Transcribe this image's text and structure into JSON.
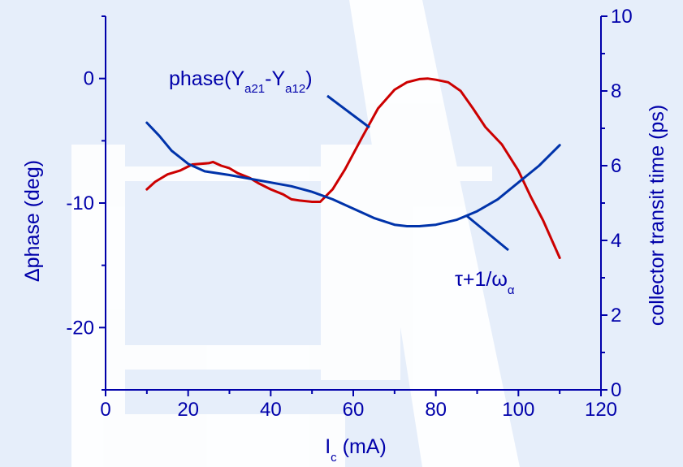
{
  "colors": {
    "background": "#e6eefa",
    "watermark": "#ffffff",
    "axis": "#0000aa",
    "series_red": "#cc0000",
    "series_blue": "#0033aa"
  },
  "chart_data": {
    "type": "line",
    "xlabel": {
      "main": "I",
      "sub": "c",
      "rest": " (mA)"
    },
    "ylabel_left": "Δphase (deg)",
    "ylabel_right": "collector transit time (ps)",
    "xlim": [
      0,
      120
    ],
    "ylim_left": [
      -25,
      5
    ],
    "ylim_right": [
      0,
      10
    ],
    "xticks": [
      "0",
      "20",
      "40",
      "60",
      "80",
      "100",
      "120"
    ],
    "yticks_left": [
      "0",
      "-10",
      "-20"
    ],
    "yticks_right": [
      "0",
      "2",
      "4",
      "6",
      "8",
      "10"
    ],
    "series": [
      {
        "axis": "left",
        "color": "#cc0000",
        "x": [
          10,
          12,
          15,
          18,
          21,
          25,
          26,
          28,
          30,
          32,
          35,
          37,
          40,
          43,
          45,
          47,
          50,
          52,
          55,
          58,
          62,
          66,
          70,
          73,
          76,
          78,
          80,
          83,
          86,
          89,
          92,
          96,
          100,
          103,
          106,
          110
        ],
        "y": [
          -8.9,
          -8.3,
          -7.7,
          -7.4,
          -6.9,
          -6.8,
          -6.7,
          -7.0,
          -7.2,
          -7.6,
          -8.0,
          -8.4,
          -8.9,
          -9.3,
          -9.7,
          -9.8,
          -9.9,
          -9.9,
          -8.9,
          -7.3,
          -4.8,
          -2.4,
          -0.9,
          -0.3,
          -0.05,
          0.0,
          -0.1,
          -0.3,
          -1.0,
          -2.4,
          -3.9,
          -5.3,
          -7.4,
          -9.5,
          -11.4,
          -14.4
        ]
      },
      {
        "axis": "right",
        "color": "#0033aa",
        "x": [
          10,
          13,
          16,
          20,
          24,
          30,
          35,
          40,
          45,
          50,
          55,
          60,
          65,
          70,
          73,
          76,
          80,
          85,
          90,
          95,
          100,
          105,
          110
        ],
        "y": [
          7.15,
          6.8,
          6.4,
          6.05,
          5.85,
          5.75,
          5.65,
          5.55,
          5.45,
          5.3,
          5.1,
          4.85,
          4.6,
          4.42,
          4.38,
          4.38,
          4.42,
          4.55,
          4.78,
          5.1,
          5.55,
          6.0,
          6.55
        ]
      }
    ],
    "annotations": [
      {
        "label": "phase(Y",
        "sub1": "a21",
        "mid": "-Y",
        "sub2": "a12",
        "end": ")"
      },
      {
        "label": "τ+1/ω",
        "sub1": "α"
      }
    ]
  }
}
